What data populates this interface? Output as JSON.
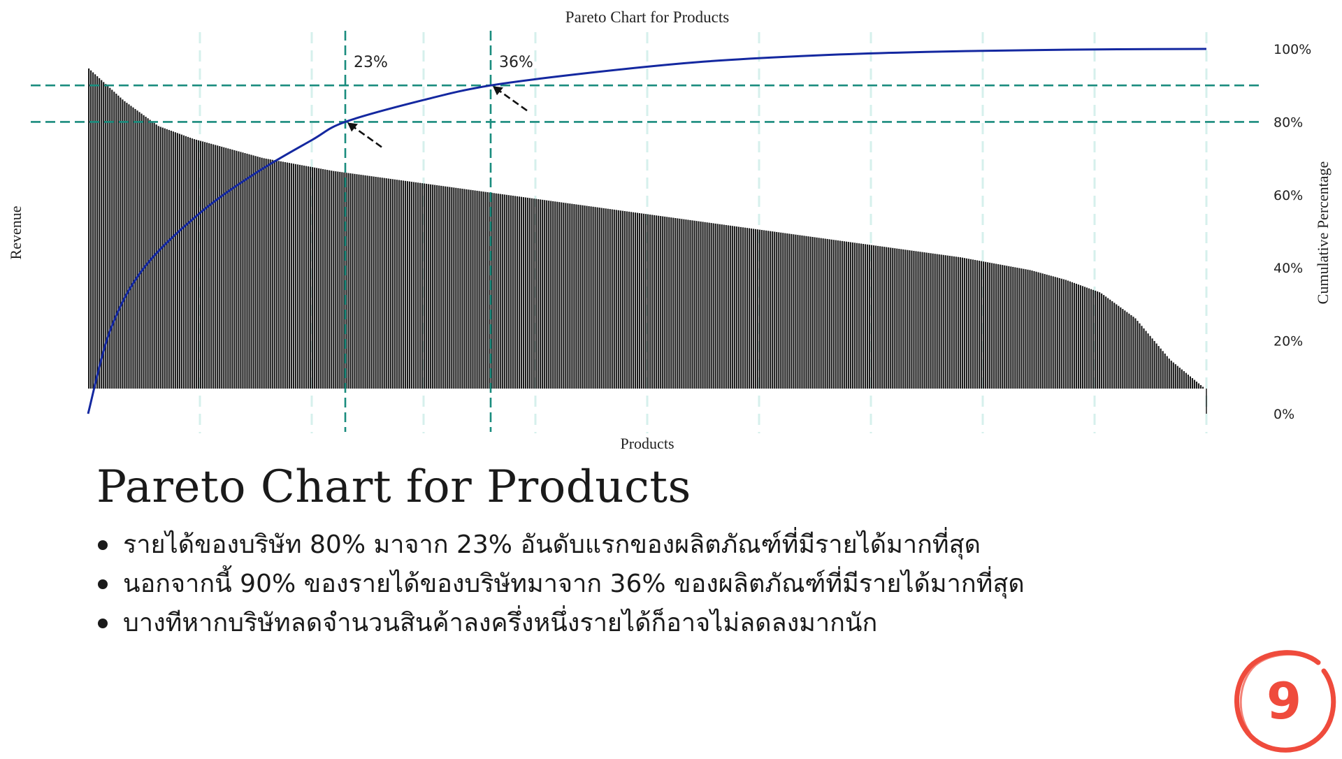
{
  "chart_data": {
    "type": "bar",
    "title": "Pareto Chart for Products",
    "xlabel": "Products",
    "ylabel": "Revenue",
    "y2label": "Cumulative Percentage",
    "y2_ticks": [
      "0%",
      "20%",
      "40%",
      "60%",
      "80%",
      "100%"
    ],
    "y2lim": [
      0,
      100
    ],
    "grid": "vertical dashed",
    "series": [
      {
        "type": "bar",
        "description": "revenue per product sorted descending",
        "values": [
          100,
          90,
          82,
          78,
          75,
          72,
          70,
          68,
          66.5,
          65,
          63.5,
          62,
          60.5,
          59,
          57.5,
          56,
          54.5,
          53,
          51.5,
          50,
          48.5,
          47,
          45.5,
          44,
          42.5,
          41,
          39,
          37,
          34,
          30,
          22,
          9,
          0
        ]
      },
      {
        "type": "line",
        "description": "cumulative percentage",
        "x_percent": [
          0,
          2,
          5,
          10,
          15,
          20,
          23,
          30,
          36,
          45,
          55,
          65,
          75,
          85,
          92,
          100
        ],
        "values": [
          0,
          23,
          40,
          55,
          66,
          75,
          80,
          86,
          90,
          93.5,
          96.5,
          98.2,
          99.2,
          99.7,
          99.9,
          100
        ]
      }
    ],
    "reference_lines": [
      {
        "cumulative": 80,
        "x_percent": 23
      },
      {
        "cumulative": 90,
        "x_percent": 36
      }
    ],
    "annotations": [
      "23%",
      "36%"
    ],
    "colors": {
      "bars": "#1b1b1b",
      "line": "#1428a0",
      "reference": "#1a8c7e",
      "grid": "#d6f0ec"
    }
  },
  "slide": {
    "heading": "Pareto Chart for Products",
    "bullets": [
      "รายได้ของบริษัท 80% มาจาก 23% อันดับแรกของผลิตภัณฑ์ที่มีรายได้มากที่สุด",
      "นอกจากนี้ 90% ของรายได้ของบริษัทมาจาก 36% ของผลิตภัณฑ์ที่มีรายได้มากที่สุด",
      "บางทีหากบริษัทลดจำนวนสินค้าลงครึ่งหนึ่งรายได้ก็อาจไม่ลดลงมากนัก"
    ],
    "page_number": "9",
    "badge_color": "#ef4b3c"
  }
}
